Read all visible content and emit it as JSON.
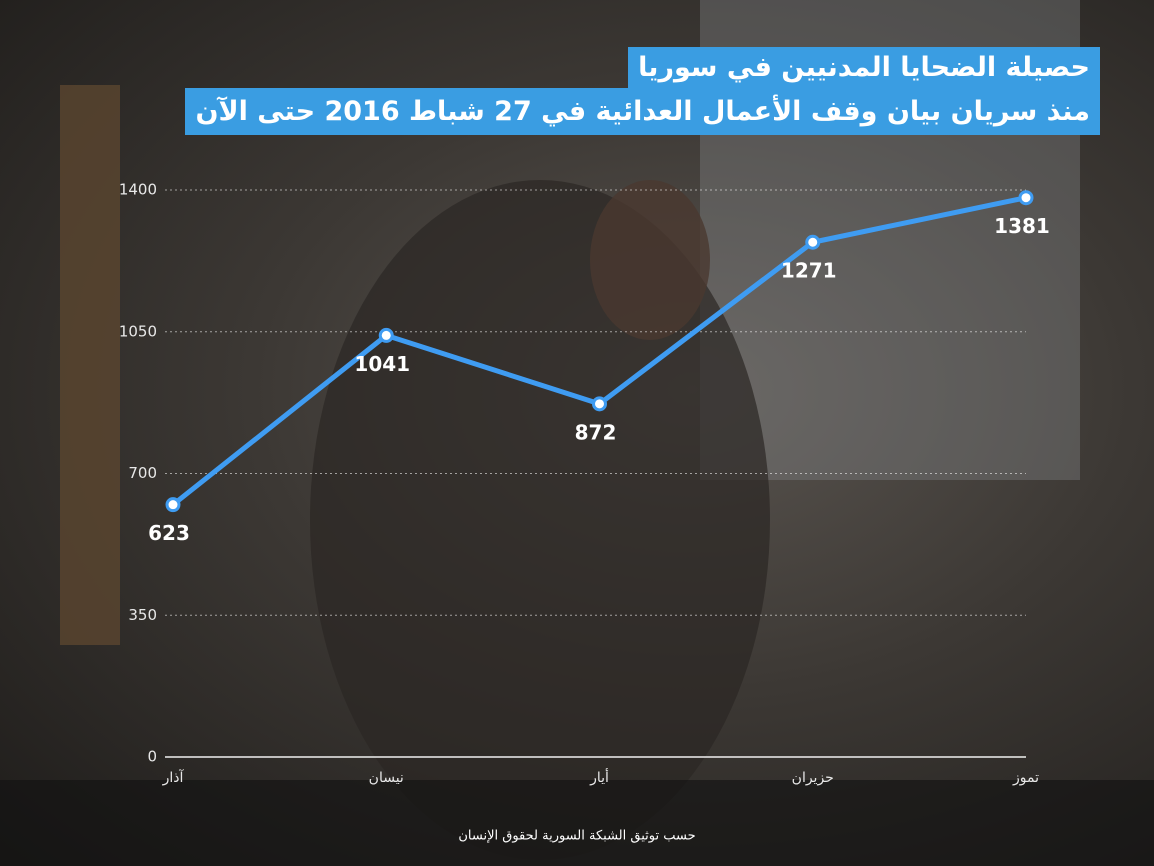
{
  "chart_data": {
    "type": "line",
    "title": "حصيلة الضحايا المدنيين في سوريا",
    "subtitle": "منذ سريان بيان وقف الأعمال العدائية في 27 شباط 2016 حتى الآن",
    "source": "حسب توثيق الشبكة السورية لحقوق الإنسان",
    "categories": [
      "آذار",
      "نيسان",
      "أيار",
      "حزيران",
      "تموز"
    ],
    "values": [
      623,
      1041,
      872,
      1271,
      1381
    ],
    "color": "#3f9cf2",
    "ylim": [
      0,
      1400
    ],
    "yticks": [
      0,
      350,
      700,
      1050,
      1400
    ],
    "grid": true
  }
}
